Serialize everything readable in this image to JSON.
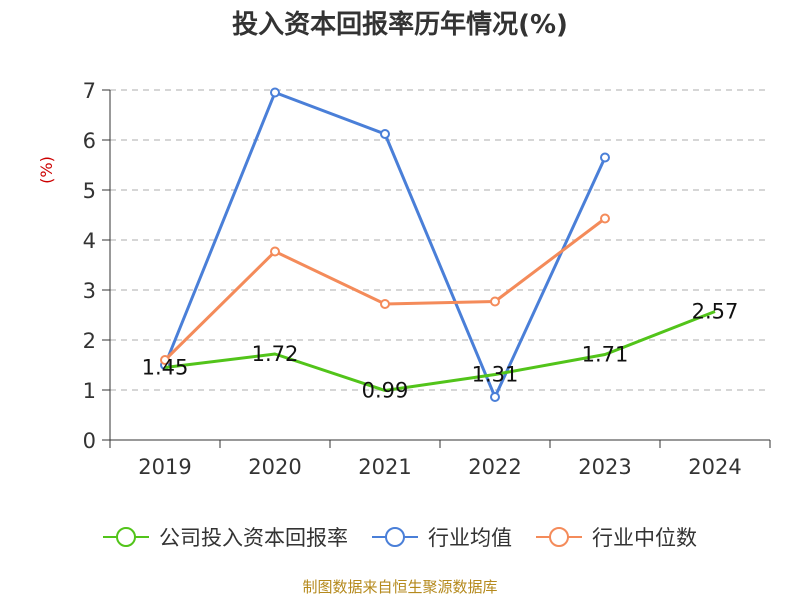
{
  "chart_data": {
    "type": "line",
    "title": "投入资本回报率历年情况(%)",
    "ylabel": "(%)",
    "categories": [
      "2019",
      "2020",
      "2021",
      "2022",
      "2023",
      "2024"
    ],
    "y_ticks": [
      "0",
      "1",
      "2",
      "3",
      "4",
      "5",
      "6",
      "7"
    ],
    "ylim": [
      0,
      7
    ],
    "grid": true,
    "legend_position": "bottom",
    "series": [
      {
        "name": "公司投入资本回报率",
        "color": "#52c41a",
        "values": [
          1.45,
          1.72,
          0.99,
          1.31,
          1.71,
          2.57
        ],
        "labels": [
          "1.45",
          "1.72",
          "0.99",
          "1.31",
          "1.71",
          "2.57"
        ]
      },
      {
        "name": "行业均值",
        "color": "#4a7fd8",
        "values": [
          1.5,
          6.95,
          6.12,
          0.86,
          5.65,
          null
        ]
      },
      {
        "name": "行业中位数",
        "color": "#f48b5a",
        "values": [
          1.6,
          3.77,
          2.72,
          2.77,
          4.43,
          null
        ]
      }
    ]
  },
  "footer": {
    "source": "制图数据来自恒生聚源数据库"
  }
}
